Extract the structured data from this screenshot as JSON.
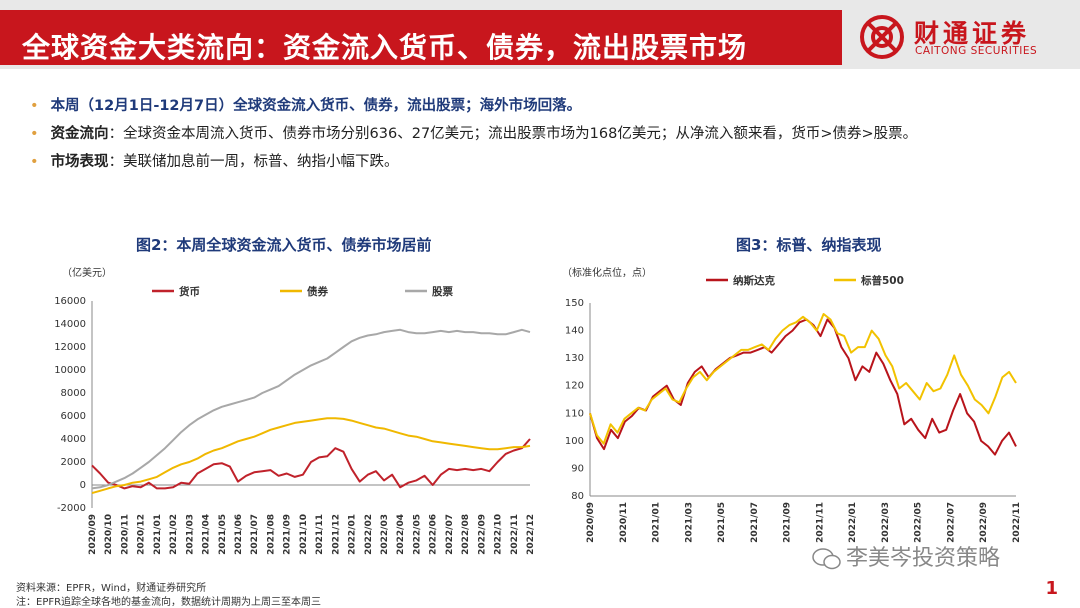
{
  "header": {
    "title": "全球资金大类流向：资金流入货币、债券，流出股票市场",
    "logo_cn": "财通证券",
    "logo_en": "CAITONG SECURITIES",
    "brand_color": "#c8161d"
  },
  "bullets": [
    {
      "label": "",
      "text": "本周（12月1日-12月7日）全球资金流入货币、债券，流出股票；海外市场回落。"
    },
    {
      "label": "资金流向",
      "text": "：全球资金本周流入货币、债券市场分别636、27亿美元；流出股票市场为168亿美元；从净流入额来看，货币>债券>股票。"
    },
    {
      "label": "市场表现",
      "text": "：美联储加息前一周，标普、纳指小幅下跌。"
    }
  ],
  "chart_data": [
    {
      "type": "line",
      "title": "图2：本周全球资金流入货币、债券市场居前",
      "unit": "（亿美元）",
      "ylim": [
        -2000,
        16000
      ],
      "yticks": [
        -2000,
        0,
        2000,
        4000,
        6000,
        8000,
        10000,
        12000,
        14000,
        16000
      ],
      "x_ticks": [
        "2020/09",
        "2020/10",
        "2020/11",
        "2020/12",
        "2021/01",
        "2021/02",
        "2021/03",
        "2021/04",
        "2021/05",
        "2021/06",
        "2021/07",
        "2021/08",
        "2021/09",
        "2021/10",
        "2021/11",
        "2021/12",
        "2022/01",
        "2022/02",
        "2022/03",
        "2022/04",
        "2022/05",
        "2022/06",
        "2022/07",
        "2022/08",
        "2022/09",
        "2022/10",
        "2022/11",
        "2022/12"
      ],
      "series": [
        {
          "name": "货币",
          "color": "#c0222b",
          "values": [
            1700,
            1000,
            200,
            0,
            -300,
            -100,
            -200,
            200,
            -300,
            -300,
            -200,
            200,
            100,
            1000,
            1400,
            1800,
            1900,
            1600,
            300,
            800,
            1100,
            1200,
            1300,
            800,
            1000,
            700,
            900,
            2000,
            2400,
            2500,
            3200,
            2900,
            1400,
            300,
            900,
            1200,
            400,
            900,
            -200,
            200,
            400,
            800,
            0,
            900,
            1400,
            1300,
            1400,
            1300,
            1400,
            1200,
            2000,
            2700,
            3000,
            3200,
            4000
          ]
        },
        {
          "name": "债券",
          "color": "#f0b800",
          "values": [
            -700,
            -500,
            -300,
            -100,
            0,
            200,
            300,
            500,
            700,
            1100,
            1500,
            1800,
            2000,
            2300,
            2700,
            3000,
            3200,
            3500,
            3800,
            4000,
            4200,
            4500,
            4800,
            5000,
            5200,
            5400,
            5500,
            5600,
            5700,
            5800,
            5800,
            5750,
            5600,
            5400,
            5200,
            5000,
            4900,
            4700,
            4500,
            4300,
            4200,
            4000,
            3800,
            3700,
            3600,
            3500,
            3400,
            3300,
            3200,
            3100,
            3100,
            3200,
            3300,
            3300,
            3400
          ]
        },
        {
          "name": "股票",
          "color": "#a8a8a8",
          "values": [
            -300,
            -200,
            0,
            300,
            600,
            1000,
            1500,
            2000,
            2600,
            3200,
            3900,
            4600,
            5200,
            5700,
            6100,
            6500,
            6800,
            7000,
            7200,
            7400,
            7600,
            8000,
            8300,
            8600,
            9100,
            9600,
            10000,
            10400,
            10700,
            11000,
            11500,
            12000,
            12500,
            12800,
            13000,
            13100,
            13300,
            13400,
            13500,
            13300,
            13200,
            13200,
            13300,
            13400,
            13300,
            13400,
            13300,
            13300,
            13200,
            13200,
            13100,
            13100,
            13300,
            13500,
            13300
          ]
        }
      ]
    },
    {
      "type": "line",
      "title": "图3：标普、纳指表现",
      "unit": "（标准化点位，点）",
      "ylim": [
        80,
        150
      ],
      "yticks": [
        80,
        90,
        100,
        110,
        120,
        130,
        140,
        150
      ],
      "x_ticks": [
        "2020/09",
        "2020/11",
        "2021/01",
        "2021/03",
        "2021/05",
        "2021/07",
        "2021/09",
        "2021/11",
        "2022/01",
        "2022/03",
        "2022/05",
        "2022/07",
        "2022/09",
        "2022/11"
      ],
      "series": [
        {
          "name": "纳斯达克",
          "color": "#b8141b",
          "values": [
            110,
            101,
            97,
            104,
            101,
            107,
            109,
            112,
            111,
            116,
            118,
            120,
            115,
            113,
            121,
            125,
            127,
            123,
            126,
            128,
            130,
            131,
            132,
            132,
            133,
            134,
            132,
            135,
            138,
            140,
            143,
            144,
            142,
            138,
            144,
            141,
            134,
            130,
            122,
            127,
            125,
            132,
            128,
            122,
            117,
            106,
            108,
            104,
            101,
            108,
            103,
            104,
            111,
            117,
            110,
            107,
            100,
            98,
            95,
            100,
            103,
            98
          ]
        },
        {
          "name": "标普500",
          "color": "#f2c200",
          "values": [
            110,
            102,
            99,
            106,
            103,
            108,
            110,
            112,
            111,
            115,
            117,
            119,
            115,
            114,
            119,
            123,
            125,
            122,
            125,
            127,
            129,
            131,
            133,
            133,
            134,
            135,
            133,
            137,
            140,
            142,
            143,
            145,
            143,
            140,
            146,
            144,
            139,
            138,
            132,
            134,
            134,
            140,
            137,
            131,
            127,
            119,
            121,
            118,
            115,
            121,
            118,
            119,
            124,
            131,
            124,
            120,
            115,
            113,
            110,
            116,
            123,
            125,
            121
          ]
        }
      ]
    }
  ],
  "footer": {
    "source": "资料来源：EPFR，Wind，财通证券研究所",
    "note": "注：EPFR追踪全球各地的基金流向，数据统计周期为上周三至本周三"
  },
  "watermark": "李美岑投资策略",
  "page_number": "1"
}
